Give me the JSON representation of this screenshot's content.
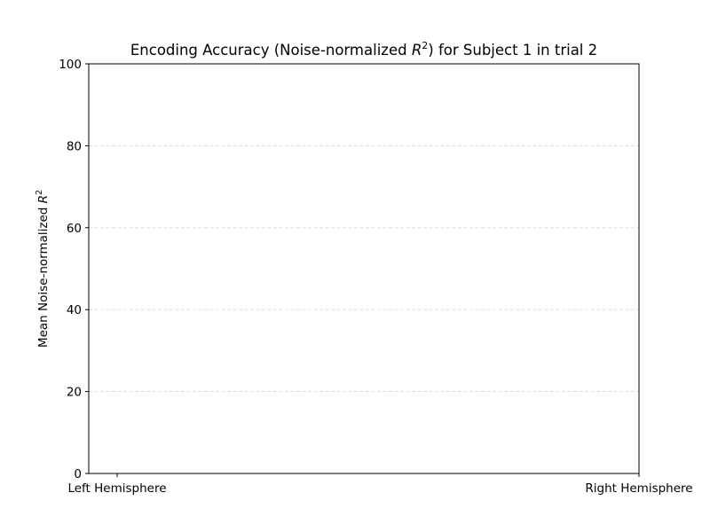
{
  "chart_data": {
    "type": "bar",
    "title_prefix": "Encoding Accuracy (Noise-normalized ",
    "title_math_base": "R",
    "title_math_exp": "2",
    "title_suffix": ") for Subject 1 in trial 2",
    "xlabel": "",
    "ylabel_prefix": "Mean Noise-normalized ",
    "ylabel_math_base": "R",
    "ylabel_math_exp": "2",
    "categories": [
      "Left Hemisphere",
      "Right Hemisphere"
    ],
    "values": [
      0,
      0
    ],
    "ylim": [
      0,
      100
    ],
    "yticks": [
      "0",
      "20",
      "40",
      "60",
      "80",
      "100"
    ],
    "grid": "y-dashed",
    "colors": {
      "grid": "#d9d9d9",
      "axis": "#000000"
    }
  }
}
